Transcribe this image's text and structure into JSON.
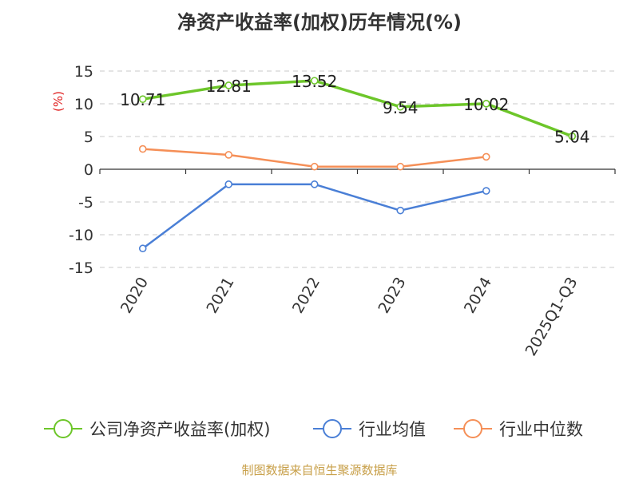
{
  "chart_data": {
    "type": "line",
    "title": "净资产收益率(加权)历年情况(%)",
    "ylabel": "(%)",
    "categories": [
      "2020",
      "2021",
      "2022",
      "2023",
      "2024",
      "2025Q1-Q3"
    ],
    "yticks": [
      15,
      10,
      5,
      0,
      -5,
      -10,
      -15
    ],
    "ylim": [
      -15,
      15
    ],
    "grid": true,
    "legend_position": "bottom",
    "series": [
      {
        "name": "公司净资产收益率(加权)",
        "color": "#6dc62a",
        "values": [
          10.71,
          12.81,
          13.52,
          9.54,
          10.02,
          5.04
        ],
        "labels": [
          "10.71",
          "12.81",
          "13.52",
          "9.54",
          "10.02",
          "5.04"
        ]
      },
      {
        "name": "行业均值",
        "color": "#4a7fd6",
        "values": [
          -12.1,
          -2.3,
          -2.3,
          -6.3,
          -3.3,
          null
        ]
      },
      {
        "name": "行业中位数",
        "color": "#f58f57",
        "values": [
          3.1,
          2.2,
          0.4,
          0.4,
          1.9,
          null
        ]
      }
    ],
    "source": "制图数据来自恒生聚源数据库"
  }
}
